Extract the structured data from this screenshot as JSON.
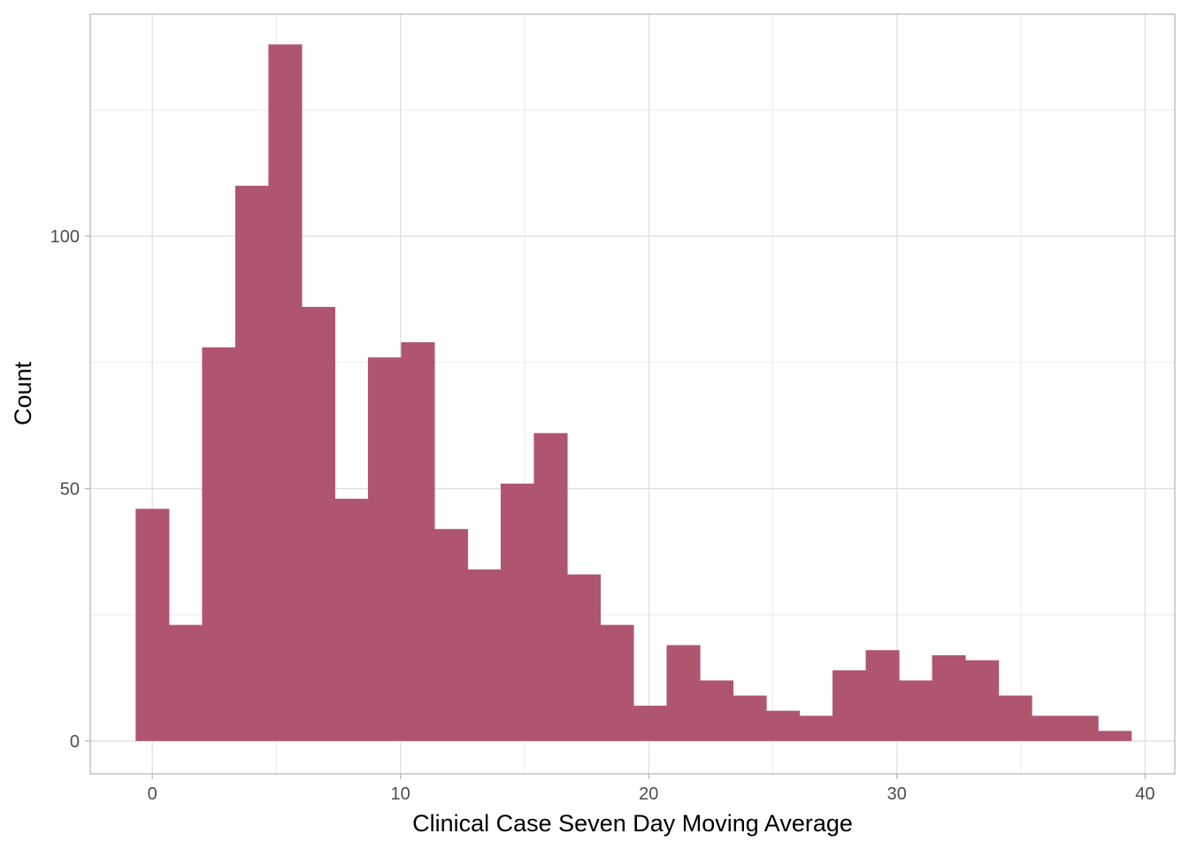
{
  "chart_data": {
    "type": "histogram",
    "title": "",
    "xlabel": "Clinical Case Seven Day Moving Average",
    "ylabel": "Count",
    "xlim": [
      -2.5,
      41.2
    ],
    "ylim": [
      -6.5,
      144
    ],
    "x_ticks": [
      0,
      10,
      20,
      30,
      40
    ],
    "y_ticks": [
      0,
      50,
      100
    ],
    "grid": true,
    "bar_color": "#b05570",
    "bin_width": 1.337,
    "bin_start": -0.67,
    "values": [
      46,
      23,
      78,
      110,
      138,
      86,
      48,
      76,
      79,
      42,
      34,
      51,
      61,
      33,
      23,
      7,
      19,
      12,
      9,
      6,
      5,
      14,
      18,
      12,
      17,
      16,
      9,
      5,
      5,
      2
    ]
  }
}
